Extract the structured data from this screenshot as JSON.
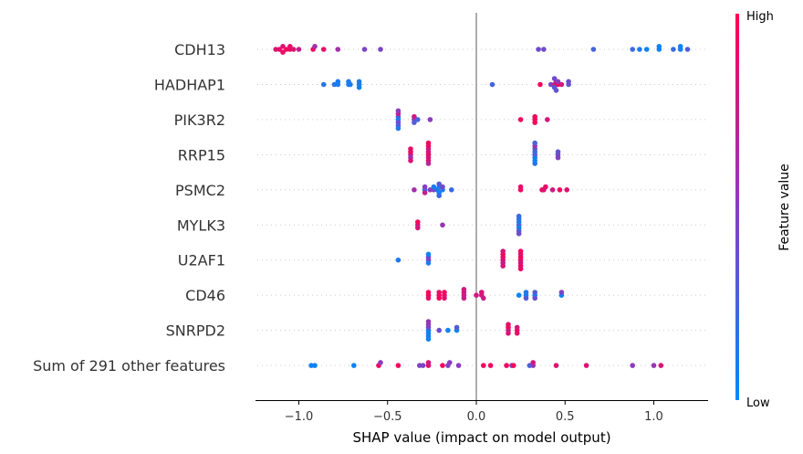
{
  "chart_data": {
    "type": "scatter",
    "subtype": "shap-beeswarm",
    "xlabel": "SHAP value (impact on model output)",
    "xlim": [
      -1.25,
      1.3
    ],
    "xticks": [
      -1.0,
      -0.5,
      0.0,
      0.5,
      1.0
    ],
    "xtick_labels": [
      "−1.0",
      "−0.5",
      "0.0",
      "0.5",
      "1.0"
    ],
    "grid": "dotted horizontal per feature",
    "colorbar": {
      "title": "Feature value",
      "high_label": "High",
      "low_label": "Low",
      "low_color": "#008bfb",
      "mid_color": "#8b3cbf",
      "high_color": "#ff0052",
      "placement": "right"
    },
    "features": [
      {
        "name": "CDH13",
        "points": [
          [
            -1.13,
            0.85
          ],
          [
            -1.11,
            0.9
          ],
          [
            -1.09,
            0.85
          ],
          [
            -1.09,
            0.9
          ],
          [
            -1.07,
            0.95
          ],
          [
            -1.05,
            0.95
          ],
          [
            -1.05,
            0.9
          ],
          [
            -1.03,
            0.85
          ],
          [
            -1.0,
            0.75
          ],
          [
            -0.92,
            0.95
          ],
          [
            -0.91,
            0.6
          ],
          [
            -0.86,
            0.9
          ],
          [
            -0.78,
            0.6
          ],
          [
            -0.63,
            0.45
          ],
          [
            -0.54,
            0.45
          ],
          [
            0.35,
            0.4
          ],
          [
            0.38,
            0.4
          ],
          [
            0.66,
            0.25
          ],
          [
            0.88,
            0.2
          ],
          [
            0.92,
            0.1
          ],
          [
            0.96,
            0.05
          ],
          [
            1.03,
            0.05
          ],
          [
            1.03,
            0.05
          ],
          [
            1.11,
            0.2
          ],
          [
            1.15,
            0.05
          ],
          [
            1.15,
            0.05
          ],
          [
            1.19,
            0.3
          ]
        ]
      },
      {
        "name": "HADHAP1",
        "points": [
          [
            -0.86,
            0.15
          ],
          [
            -0.8,
            0.15
          ],
          [
            -0.78,
            0.1
          ],
          [
            -0.78,
            0.1
          ],
          [
            -0.72,
            0.05
          ],
          [
            -0.72,
            0.1
          ],
          [
            -0.71,
            0.1
          ],
          [
            -0.66,
            0.1
          ],
          [
            -0.66,
            0.1
          ],
          [
            -0.66,
            0.05
          ],
          [
            0.09,
            0.25
          ],
          [
            0.36,
            0.95
          ],
          [
            0.42,
            0.45
          ],
          [
            0.44,
            0.7
          ],
          [
            0.45,
            0.85
          ],
          [
            0.44,
            0.3
          ],
          [
            0.44,
            0.4
          ],
          [
            0.46,
            0.95
          ],
          [
            0.48,
            0.8
          ],
          [
            0.46,
            0.5
          ],
          [
            0.45,
            0.35
          ],
          [
            0.52,
            0.35
          ],
          [
            0.52,
            0.4
          ]
        ]
      },
      {
        "name": "PIK3R2",
        "points": [
          [
            -0.44,
            0.05
          ],
          [
            -0.44,
            0.2
          ],
          [
            -0.44,
            0.4
          ],
          [
            -0.44,
            0.75
          ],
          [
            -0.44,
            0.3
          ],
          [
            -0.44,
            0.5
          ],
          [
            -0.44,
            0.1
          ],
          [
            -0.35,
            0.5
          ],
          [
            -0.35,
            0.8
          ],
          [
            -0.35,
            0.3
          ],
          [
            -0.33,
            0.25
          ],
          [
            -0.26,
            0.5
          ],
          [
            0.25,
            0.95
          ],
          [
            0.33,
            0.95
          ],
          [
            0.33,
            0.95
          ],
          [
            0.33,
            0.95
          ],
          [
            0.4,
            0.8
          ]
        ]
      },
      {
        "name": "RRP15",
        "points": [
          [
            -0.37,
            0.7
          ],
          [
            -0.37,
            0.95
          ],
          [
            -0.37,
            0.6
          ],
          [
            -0.37,
            0.9
          ],
          [
            -0.37,
            0.85
          ],
          [
            -0.27,
            0.9
          ],
          [
            -0.27,
            0.85
          ],
          [
            -0.27,
            0.8
          ],
          [
            -0.27,
            0.75
          ],
          [
            -0.27,
            0.85
          ],
          [
            -0.27,
            0.9
          ],
          [
            -0.27,
            0.7
          ],
          [
            -0.27,
            0.95
          ],
          [
            0.33,
            0.4
          ],
          [
            0.33,
            0.2
          ],
          [
            0.33,
            0.1
          ],
          [
            0.33,
            0.3
          ],
          [
            0.33,
            0.05
          ],
          [
            0.33,
            0.6
          ],
          [
            0.33,
            0.15
          ],
          [
            0.33,
            0.25
          ],
          [
            0.46,
            0.4
          ],
          [
            0.46,
            0.35
          ],
          [
            0.46,
            0.45
          ]
        ]
      },
      {
        "name": "PSMC2",
        "points": [
          [
            -0.35,
            0.6
          ],
          [
            -0.29,
            0.1
          ],
          [
            -0.29,
            0.5
          ],
          [
            -0.29,
            0.75
          ],
          [
            -0.26,
            0.5
          ],
          [
            -0.24,
            0.45
          ],
          [
            -0.24,
            0.1
          ],
          [
            -0.22,
            0.15
          ],
          [
            -0.21,
            0.1
          ],
          [
            -0.21,
            0.05
          ],
          [
            -0.21,
            0.3
          ],
          [
            -0.21,
            0.2
          ],
          [
            -0.19,
            0.1
          ],
          [
            -0.19,
            0.4
          ],
          [
            -0.14,
            0.2
          ],
          [
            0.25,
            0.95
          ],
          [
            0.25,
            0.9
          ],
          [
            0.37,
            0.95
          ],
          [
            0.38,
            0.85
          ],
          [
            0.39,
            0.9
          ],
          [
            0.43,
            0.8
          ],
          [
            0.47,
            0.95
          ],
          [
            0.51,
            0.85
          ]
        ]
      },
      {
        "name": "MYLK3",
        "points": [
          [
            -0.33,
            0.7
          ],
          [
            -0.33,
            0.95
          ],
          [
            -0.33,
            0.8
          ],
          [
            -0.19,
            0.55
          ],
          [
            0.24,
            0.35
          ],
          [
            0.24,
            0.1
          ],
          [
            0.24,
            0.05
          ],
          [
            0.24,
            0.15
          ],
          [
            0.24,
            0.3
          ],
          [
            0.24,
            0.2
          ],
          [
            0.24,
            0.4
          ]
        ]
      },
      {
        "name": "U2AF1",
        "points": [
          [
            -0.44,
            0.1
          ],
          [
            -0.27,
            0.5
          ],
          [
            -0.27,
            0.45
          ],
          [
            -0.27,
            0.1
          ],
          [
            -0.27,
            0.05
          ],
          [
            0.15,
            0.85
          ],
          [
            0.15,
            0.9
          ],
          [
            0.15,
            0.75
          ],
          [
            0.15,
            0.95
          ],
          [
            0.15,
            0.8
          ],
          [
            0.15,
            0.85
          ],
          [
            0.25,
            0.9
          ],
          [
            0.25,
            0.95
          ],
          [
            0.25,
            0.8
          ],
          [
            0.25,
            0.85
          ],
          [
            0.25,
            0.9
          ],
          [
            0.25,
            0.95
          ],
          [
            0.25,
            0.9
          ]
        ]
      },
      {
        "name": "CD46",
        "points": [
          [
            -0.27,
            0.95
          ],
          [
            -0.27,
            0.95
          ],
          [
            -0.27,
            0.9
          ],
          [
            -0.21,
            0.95
          ],
          [
            -0.21,
            0.9
          ],
          [
            -0.21,
            0.95
          ],
          [
            -0.18,
            0.9
          ],
          [
            -0.18,
            0.95
          ],
          [
            -0.18,
            0.85
          ],
          [
            -0.07,
            0.75
          ],
          [
            -0.07,
            0.8
          ],
          [
            -0.07,
            0.75
          ],
          [
            -0.07,
            0.8
          ],
          [
            0.0,
            0.8
          ],
          [
            0.03,
            0.8
          ],
          [
            0.03,
            0.85
          ],
          [
            0.04,
            0.75
          ],
          [
            0.24,
            0.05
          ],
          [
            0.28,
            0.05
          ],
          [
            0.28,
            0.1
          ],
          [
            0.28,
            0.3
          ],
          [
            0.33,
            0.05
          ],
          [
            0.33,
            0.3
          ],
          [
            0.33,
            0.4
          ],
          [
            0.48,
            0.05
          ],
          [
            0.48,
            0.45
          ]
        ]
      },
      {
        "name": "SNRPD2",
        "points": [
          [
            -0.27,
            0.05
          ],
          [
            -0.27,
            0.4
          ],
          [
            -0.27,
            0.1
          ],
          [
            -0.27,
            0.5
          ],
          [
            -0.27,
            0.1
          ],
          [
            -0.27,
            0.55
          ],
          [
            -0.27,
            0.05
          ],
          [
            -0.21,
            0.4
          ],
          [
            -0.16,
            0.05
          ],
          [
            -0.11,
            0.05
          ],
          [
            -0.11,
            0.3
          ],
          [
            0.18,
            0.7
          ],
          [
            0.18,
            0.95
          ],
          [
            0.18,
            0.85
          ],
          [
            0.18,
            0.9
          ],
          [
            0.23,
            0.95
          ],
          [
            0.23,
            0.8
          ],
          [
            0.23,
            0.9
          ]
        ]
      },
      {
        "name": "Sum of 291 other features",
        "points": [
          [
            -0.93,
            0.05
          ],
          [
            -0.91,
            0.05
          ],
          [
            -0.69,
            0.05
          ],
          [
            -0.55,
            0.95
          ],
          [
            -0.54,
            0.5
          ],
          [
            -0.44,
            0.95
          ],
          [
            -0.32,
            0.45
          ],
          [
            -0.3,
            0.45
          ],
          [
            -0.27,
            0.85
          ],
          [
            -0.27,
            0.8
          ],
          [
            -0.19,
            0.95
          ],
          [
            -0.16,
            0.45
          ],
          [
            -0.15,
            0.5
          ],
          [
            -0.1,
            0.5
          ],
          [
            0.04,
            0.95
          ],
          [
            0.08,
            0.95
          ],
          [
            0.17,
            0.95
          ],
          [
            0.2,
            0.55
          ],
          [
            0.21,
            0.95
          ],
          [
            0.3,
            0.25
          ],
          [
            0.32,
            0.5
          ],
          [
            0.32,
            0.8
          ],
          [
            0.45,
            0.85
          ],
          [
            0.62,
            0.85
          ],
          [
            0.88,
            0.5
          ],
          [
            1.0,
            0.55
          ],
          [
            1.04,
            0.85
          ]
        ]
      }
    ]
  }
}
